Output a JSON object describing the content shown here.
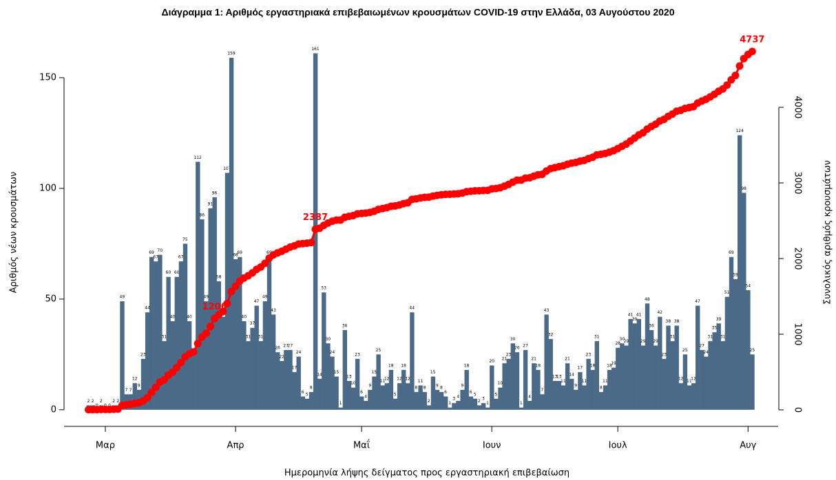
{
  "chart_data": {
    "type": "bar",
    "title": "Διάγραμμα 1: Αριθμός εργαστηριακά επιβεβαιωμένων κρουσμάτων COVID-19 στην Ελλάδα, 03 Αυγούστου 2020",
    "x_label": "Ημερομηνία λήψης δείγματος προς εργαστηριακή επιβεβαίωση",
    "y_label": "Αριθμός νέων κρουσμάτων",
    "y2_label": "Συνολικός αριθμός κρουσμάτων",
    "categories": [
      null,
      null,
      null,
      null,
      "Μαρ",
      null,
      null,
      null,
      null,
      null,
      null,
      null,
      null,
      null,
      null,
      null,
      null,
      null,
      null,
      null,
      null,
      null,
      null,
      null,
      null,
      null,
      null,
      null,
      null,
      null,
      null,
      null,
      null,
      null,
      null,
      "Απρ",
      null,
      null,
      null,
      null,
      null,
      null,
      null,
      null,
      null,
      null,
      null,
      null,
      null,
      null,
      null,
      null,
      null,
      null,
      null,
      null,
      null,
      null,
      null,
      null,
      null,
      null,
      null,
      null,
      null,
      "Μαΐ",
      null,
      null,
      null,
      null,
      null,
      null,
      null,
      null,
      null,
      null,
      null,
      null,
      null,
      null,
      null,
      null,
      null,
      null,
      null,
      null,
      null,
      null,
      null,
      null,
      null,
      null,
      null,
      null,
      null,
      null,
      "Ιουν",
      null,
      null,
      null,
      null,
      null,
      null,
      null,
      null,
      null,
      null,
      null,
      null,
      null,
      null,
      null,
      null,
      null,
      null,
      null,
      null,
      null,
      null,
      null,
      null,
      null,
      null,
      null,
      null,
      null,
      "Ιουλ",
      null,
      null,
      null,
      null,
      null,
      null,
      null,
      null,
      null,
      null,
      null,
      null,
      null,
      null,
      null,
      null,
      null,
      null,
      null,
      null,
      null,
      null,
      null,
      null,
      null,
      null,
      null,
      null,
      null,
      null,
      "Αυγ",
      null
    ],
    "series": [
      {
        "type": "bar",
        "color": "#4a6a88",
        "values": [
          2,
          2,
          0,
          2,
          0,
          0,
          2,
          2,
          49,
          7,
          7,
          12,
          9,
          23,
          44,
          69,
          67,
          70,
          31,
          60,
          40,
          60,
          67,
          75,
          40,
          25,
          112,
          86,
          49,
          91,
          96,
          58,
          42,
          107,
          159,
          68,
          69,
          40,
          31,
          37,
          47,
          31,
          49,
          69,
          43,
          26,
          22,
          27,
          27,
          17,
          24,
          6,
          5,
          8,
          161,
          14,
          53,
          30,
          24,
          15,
          1,
          36,
          13,
          10,
          23,
          6,
          4,
          9,
          15,
          25,
          11,
          12,
          18,
          5,
          12,
          18,
          12,
          44,
          8,
          11,
          8,
          2,
          15,
          9,
          8,
          6,
          1,
          3,
          4,
          9,
          18,
          6,
          5,
          2,
          3,
          1,
          20,
          5,
          10,
          21,
          23,
          30,
          26,
          1,
          27,
          4,
          21,
          18,
          7,
          43,
          32,
          13,
          13,
          11,
          21,
          14,
          9,
          17,
          11,
          23,
          18,
          31,
          8,
          11,
          18,
          19,
          28,
          30,
          29,
          41,
          39,
          41,
          29,
          48,
          36,
          29,
          42,
          23,
          38,
          31,
          38,
          12,
          25,
          11,
          12,
          47,
          27,
          24,
          31,
          35,
          39,
          31,
          51,
          69,
          59,
          124,
          98,
          54,
          25
        ]
      },
      {
        "type": "line",
        "axis": "y2",
        "color": "#ff0000",
        "values": [
          2,
          4,
          4,
          6,
          6,
          6,
          8,
          10,
          59,
          66,
          73,
          85,
          94,
          117,
          161,
          230,
          297,
          367,
          398,
          458,
          498,
          558,
          625,
          700,
          740,
          765,
          877,
          963,
          1012,
          1103,
          1206,
          1257,
          1299,
          1406,
          1565,
          1633,
          1702,
          1742,
          1773,
          1810,
          1857,
          1888,
          1937,
          2006,
          2049,
          2075,
          2097,
          2124,
          2151,
          2168,
          2192,
          2198,
          2203,
          2211,
          2387,
          2400,
          2439,
          2469,
          2493,
          2508,
          2509,
          2545,
          2558,
          2568,
          2591,
          2597,
          2601,
          2610,
          2625,
          2650,
          2661,
          2673,
          2691,
          2696,
          2708,
          2726,
          2738,
          2782,
          2790,
          2801,
          2809,
          2811,
          2826,
          2835,
          2843,
          2849,
          2850,
          2853,
          2857,
          2866,
          2884,
          2890,
          2895,
          2897,
          2900,
          2901,
          2921,
          2926,
          2936,
          2957,
          2980,
          3010,
          3036,
          3037,
          3064,
          3068,
          3089,
          3107,
          3114,
          3157,
          3189,
          3202,
          3215,
          3226,
          3247,
          3261,
          3270,
          3287,
          3298,
          3321,
          3339,
          3370,
          3378,
          3389,
          3407,
          3426,
          3454,
          3484,
          3513,
          3554,
          3593,
          3634,
          3663,
          3711,
          3747,
          3776,
          3818,
          3841,
          3879,
          3910,
          3948,
          3960,
          3985,
          3996,
          4008,
          4055,
          4082,
          4106,
          4137,
          4172,
          4211,
          4242,
          4293,
          4362,
          4421,
          4545,
          4643,
          4697,
          4737
        ],
        "value_labels": [
          null,
          null,
          null,
          null,
          null,
          null,
          null,
          null,
          null,
          null,
          null,
          null,
          null,
          null,
          null,
          null,
          null,
          null,
          null,
          null,
          null,
          null,
          null,
          null,
          null,
          null,
          null,
          null,
          null,
          null,
          "1206",
          null,
          null,
          null,
          null,
          null,
          null,
          null,
          null,
          null,
          null,
          null,
          null,
          null,
          null,
          null,
          null,
          null,
          null,
          null,
          null,
          null,
          null,
          null,
          "2387",
          null,
          null,
          null,
          null,
          null,
          null,
          null,
          null,
          null,
          null,
          null,
          null,
          null,
          null,
          null,
          null,
          null,
          null,
          null,
          null,
          null,
          null,
          null,
          null,
          null,
          null,
          null,
          null,
          null,
          null,
          null,
          null,
          null,
          null,
          null,
          null,
          null,
          null,
          null,
          null,
          null,
          null,
          null,
          null,
          null,
          null,
          null,
          null,
          null,
          null,
          null,
          null,
          null,
          null,
          null,
          null,
          null,
          null,
          null,
          null,
          null,
          null,
          null,
          null,
          null,
          null,
          null,
          null,
          null,
          null,
          null,
          null,
          null,
          null,
          null,
          null,
          null,
          null,
          null,
          null,
          null,
          null,
          null,
          null,
          null,
          null,
          null,
          null,
          null,
          null,
          null,
          null,
          null,
          null,
          null,
          null,
          null,
          null,
          null,
          null,
          null,
          null,
          null,
          "4737"
        ]
      }
    ],
    "ylim": [
      -7.5,
      168
    ],
    "yticks": [
      0,
      50,
      100,
      150
    ],
    "y2lim": [
      -218,
      4918
    ],
    "y2ticks": [
      0,
      1000,
      2000,
      3000,
      4000
    ]
  }
}
